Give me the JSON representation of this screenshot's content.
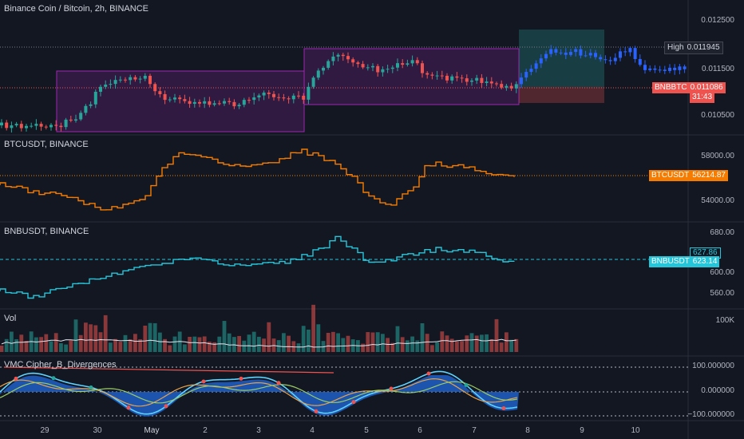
{
  "main": {
    "title": "Binance Coin / Bitcoin, 2h, BINANCE",
    "axis_ticks": [
      "0.012500",
      "0.011500",
      "0.010500"
    ],
    "high_label": "High",
    "high_value": "0.011945",
    "symbol_tag": "BNBBTC",
    "last_value": "0.011086",
    "countdown": "31:43",
    "colors": {
      "up": "#26a69a",
      "down": "#ef5350",
      "box": "#9c27b0",
      "tp": "#26a69a",
      "sl": "#ef5350"
    }
  },
  "btc": {
    "title": "BTCUSDT, BINANCE",
    "axis_ticks": [
      "58000.00",
      "54000.00"
    ],
    "symbol_tag": "BTCUSDT",
    "last_value": "56214.87",
    "color": "#f57c00"
  },
  "bnb": {
    "title": "BNBUSDT, BINANCE",
    "axis_ticks": [
      "680.00",
      "600.00",
      "560.00"
    ],
    "extra_value": "627.86",
    "symbol_tag": "BNBUSDT",
    "last_value": "623.14",
    "color": "#26c6da"
  },
  "vol": {
    "title": "Vol",
    "axis_ticks": [
      "100K"
    ]
  },
  "vmc": {
    "title": "VMC Cipher_B_Divergences",
    "axis_ticks": [
      "100.000000",
      "0.000000",
      "−100.000000"
    ]
  },
  "dates": [
    "29",
    "30",
    "May",
    "2",
    "3",
    "4",
    "5",
    "6",
    "7",
    "8",
    "9",
    "10"
  ]
}
